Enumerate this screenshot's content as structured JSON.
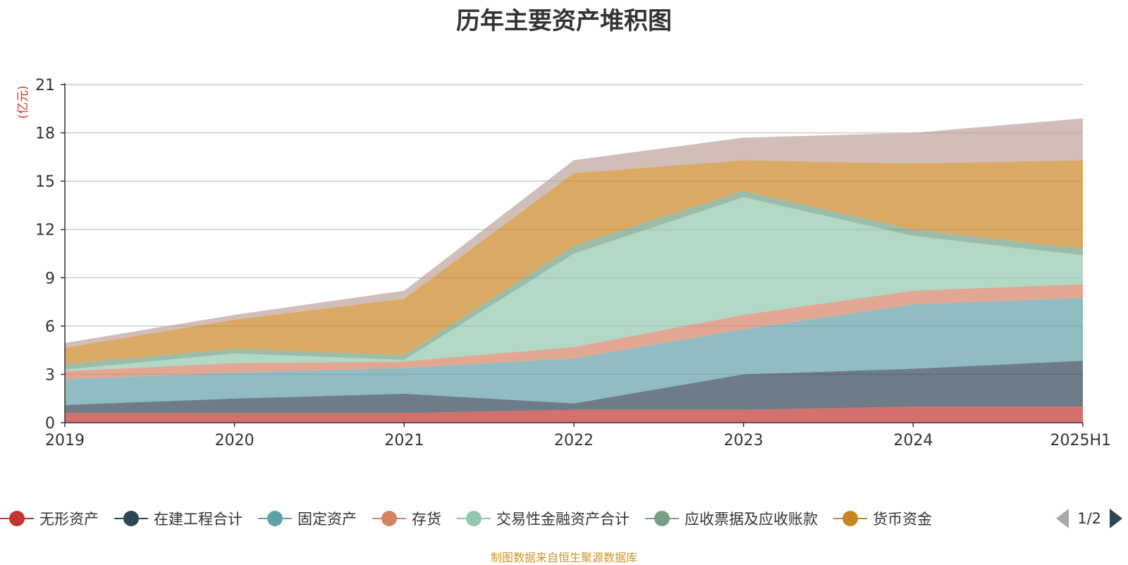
{
  "chart_data": {
    "type": "area",
    "stacked": true,
    "title": "历年主要资产堆积图",
    "ylabel": "(亿元)",
    "categories": [
      "2019",
      "2020",
      "2021",
      "2022",
      "2023",
      "2024",
      "2025H1"
    ],
    "ylim": [
      0,
      21
    ],
    "yticks": [
      0,
      3,
      6,
      9,
      12,
      15,
      18,
      21
    ],
    "grid": true,
    "legend_position": "bottom",
    "series": [
      {
        "name": "无形资产",
        "color": "#c23531",
        "values": [
          0.6,
          0.6,
          0.6,
          0.8,
          0.8,
          1.0,
          1.0
        ]
      },
      {
        "name": "在建工程合计",
        "color": "#2f4554",
        "values": [
          0.5,
          0.9,
          1.2,
          0.4,
          2.2,
          2.35,
          2.85
        ]
      },
      {
        "name": "固定资产",
        "color": "#61a0a8",
        "values": [
          1.6,
          1.6,
          1.6,
          2.8,
          2.8,
          4.0,
          3.9
        ]
      },
      {
        "name": "存货",
        "color": "#d48265",
        "values": [
          0.5,
          0.6,
          0.4,
          0.7,
          0.9,
          0.85,
          0.85
        ]
      },
      {
        "name": "交易性金融资产合计",
        "color": "#91c7ae",
        "values": [
          0.1,
          0.6,
          0.1,
          5.8,
          7.3,
          3.4,
          1.8
        ]
      },
      {
        "name": "应收票据及应收账款",
        "color": "#749f83",
        "values": [
          0.35,
          0.3,
          0.3,
          0.5,
          0.4,
          0.4,
          0.4
        ]
      },
      {
        "name": "货币资金",
        "color": "#ca8622",
        "values": [
          1.0,
          1.8,
          3.5,
          4.5,
          1.9,
          4.1,
          5.5
        ]
      },
      {
        "name": "",
        "color": "#bda29a",
        "values": [
          0.3,
          0.3,
          0.5,
          0.8,
          1.4,
          1.9,
          2.6
        ]
      }
    ]
  },
  "legend": {
    "items": [
      {
        "label": "无形资产",
        "color": "#c23531"
      },
      {
        "label": "在建工程合计",
        "color": "#2f4554"
      },
      {
        "label": "固定资产",
        "color": "#61a0a8"
      },
      {
        "label": "存货",
        "color": "#d48265"
      },
      {
        "label": "交易性金融资产合计",
        "color": "#91c7ae"
      },
      {
        "label": "应收票据及应收账款",
        "color": "#749f83"
      },
      {
        "label": "货币资金",
        "color": "#ca8622"
      }
    ],
    "page": "1/2"
  },
  "footer": {
    "source_note": "制图数据来自恒生聚源数据库"
  }
}
